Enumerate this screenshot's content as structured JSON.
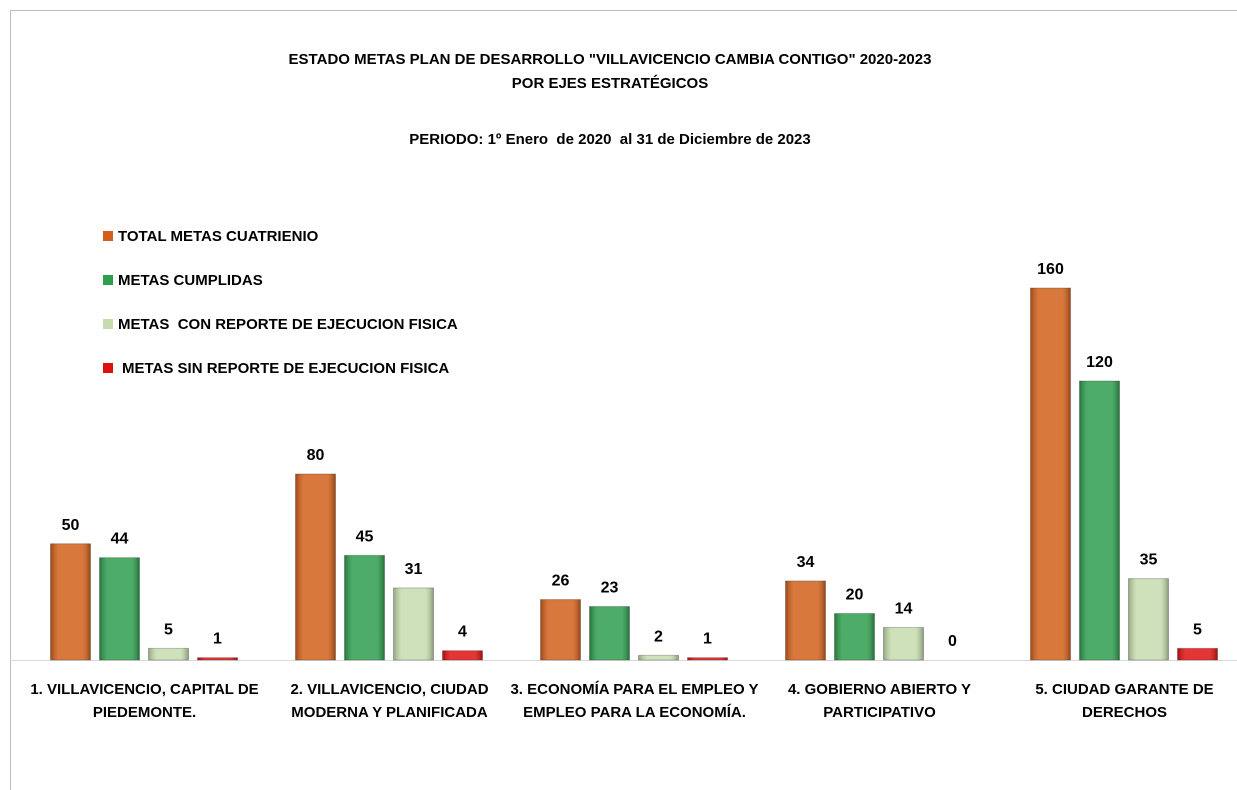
{
  "chart_data": {
    "type": "bar",
    "title": [
      "ESTADO METAS PLAN DE DESARROLLO \"VILLAVICENCIO CAMBIA CONTIGO\" 2020-2023",
      "POR EJES ESTRATÉGICOS"
    ],
    "subtitle": "PERIODO: 1º Enero  de 2020  al 31 de Diciembre de 2023",
    "categories": [
      "1. VILLAVICENCIO, CAPITAL DE PIEDEMONTE.",
      "2. VILLAVICENCIO, CIUDAD MODERNA Y PLANIFICADA",
      "3. ECONOMÍA PARA EL EMPLEO Y EMPLEO PARA LA ECONOMÍA.",
      "4. GOBIERNO ABIERTO Y PARTICIPATIVO",
      "5. CIUDAD GARANTE DE DERECHOS"
    ],
    "series": [
      {
        "name": "TOTAL METAS CUATRIENIO",
        "color": "#d2601a",
        "values": [
          50,
          80,
          26,
          34,
          160
        ]
      },
      {
        "name": "METAS CUMPLIDAS",
        "color": "#2e9e4e",
        "values": [
          44,
          45,
          23,
          20,
          120
        ]
      },
      {
        "name": "METAS  CON REPORTE DE EJECUCION FISICA",
        "color": "#c6dcae",
        "values": [
          5,
          31,
          2,
          14,
          35
        ]
      },
      {
        "name": "METAS SIN REPORTE DE EJECUCION FISICA",
        "color": "#e01010",
        "values": [
          1,
          4,
          1,
          0,
          5
        ]
      }
    ],
    "ylim": [
      0,
      160
    ],
    "legend": "upper left"
  }
}
